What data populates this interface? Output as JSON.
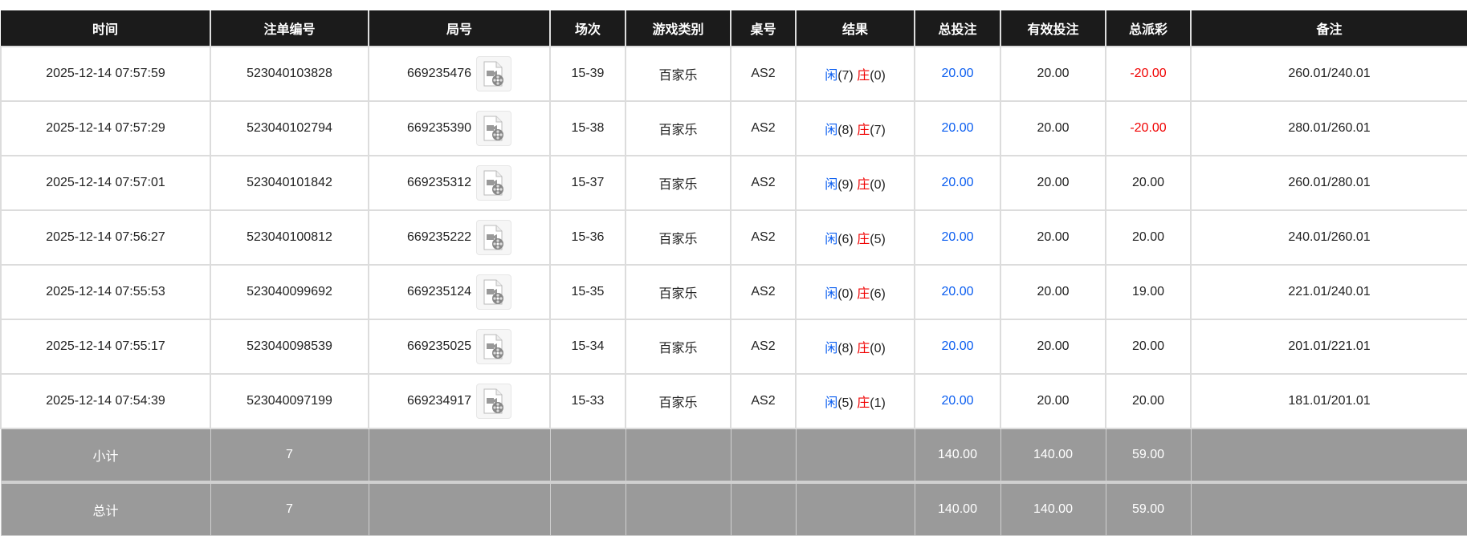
{
  "headers": [
    "时间",
    "注单编号",
    "局号",
    "场次",
    "游戏类别",
    "桌号",
    "结果",
    "总投注",
    "有效投注",
    "总派彩",
    "备注"
  ],
  "rows": [
    {
      "time": "2025-12-14 07:57:59",
      "bet_id": "523040103828",
      "round": "669235476",
      "shoe": "15-39",
      "game": "百家乐",
      "table": "AS2",
      "player_label": "闲",
      "player": "(7)",
      "banker_label": "庄",
      "banker": "(0)",
      "total_bet": "20.00",
      "valid_bet": "20.00",
      "payout": "-20.00",
      "payout_negative": true,
      "note": "260.01/240.01"
    },
    {
      "time": "2025-12-14 07:57:29",
      "bet_id": "523040102794",
      "round": "669235390",
      "shoe": "15-38",
      "game": "百家乐",
      "table": "AS2",
      "player_label": "闲",
      "player": "(8)",
      "banker_label": "庄",
      "banker": "(7)",
      "total_bet": "20.00",
      "valid_bet": "20.00",
      "payout": "-20.00",
      "payout_negative": true,
      "note": "280.01/260.01"
    },
    {
      "time": "2025-12-14 07:57:01",
      "bet_id": "523040101842",
      "round": "669235312",
      "shoe": "15-37",
      "game": "百家乐",
      "table": "AS2",
      "player_label": "闲",
      "player": "(9)",
      "banker_label": "庄",
      "banker": "(0)",
      "total_bet": "20.00",
      "valid_bet": "20.00",
      "payout": "20.00",
      "payout_negative": false,
      "note": "260.01/280.01"
    },
    {
      "time": "2025-12-14 07:56:27",
      "bet_id": "523040100812",
      "round": "669235222",
      "shoe": "15-36",
      "game": "百家乐",
      "table": "AS2",
      "player_label": "闲",
      "player": "(6)",
      "banker_label": "庄",
      "banker": "(5)",
      "total_bet": "20.00",
      "valid_bet": "20.00",
      "payout": "20.00",
      "payout_negative": false,
      "note": "240.01/260.01"
    },
    {
      "time": "2025-12-14 07:55:53",
      "bet_id": "523040099692",
      "round": "669235124",
      "shoe": "15-35",
      "game": "百家乐",
      "table": "AS2",
      "player_label": "闲",
      "player": "(0)",
      "banker_label": "庄",
      "banker": "(6)",
      "total_bet": "20.00",
      "valid_bet": "20.00",
      "payout": "19.00",
      "payout_negative": false,
      "note": "221.01/240.01"
    },
    {
      "time": "2025-12-14 07:55:17",
      "bet_id": "523040098539",
      "round": "669235025",
      "shoe": "15-34",
      "game": "百家乐",
      "table": "AS2",
      "player_label": "闲",
      "player": "(8)",
      "banker_label": "庄",
      "banker": "(0)",
      "total_bet": "20.00",
      "valid_bet": "20.00",
      "payout": "20.00",
      "payout_negative": false,
      "note": "201.01/221.01"
    },
    {
      "time": "2025-12-14 07:54:39",
      "bet_id": "523040097199",
      "round": "669234917",
      "shoe": "15-33",
      "game": "百家乐",
      "table": "AS2",
      "player_label": "闲",
      "player": "(5)",
      "banker_label": "庄",
      "banker": "(1)",
      "total_bet": "20.00",
      "valid_bet": "20.00",
      "payout": "20.00",
      "payout_negative": false,
      "note": "181.01/201.01"
    }
  ],
  "subtotal": {
    "label": "小计",
    "count": "7",
    "total_bet": "140.00",
    "valid_bet": "140.00",
    "payout": "59.00"
  },
  "total": {
    "label": "总计",
    "count": "7",
    "total_bet": "140.00",
    "valid_bet": "140.00",
    "payout": "59.00"
  },
  "icons": {
    "replay": "video-file-icon"
  },
  "colors": {
    "header_bg": "#1b1b1b",
    "player": "#0a5df0",
    "banker": "#f00000",
    "negative": "#f00000",
    "summary_bg": "#9a9a9a"
  }
}
